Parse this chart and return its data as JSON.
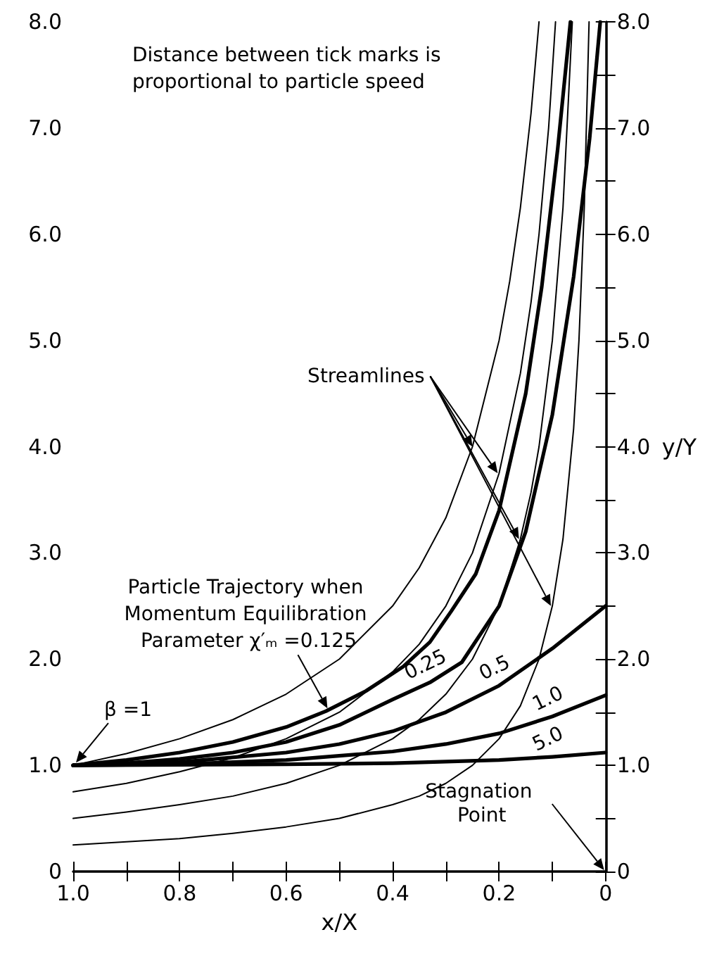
{
  "chart_data": {
    "type": "line",
    "xlabel": "x/X",
    "y2label": "y/Y",
    "xlim": [
      1.0,
      0
    ],
    "xticks": [
      {
        "value": 1,
        "label": "1.0"
      },
      {
        "value": 0.9,
        "label": null
      },
      {
        "value": 0.8,
        "label": "0.8"
      },
      {
        "value": 0.7,
        "label": null
      },
      {
        "value": 0.6,
        "label": "0.6"
      },
      {
        "value": 0.5,
        "label": null
      },
      {
        "value": 0.4,
        "label": "0.4"
      },
      {
        "value": 0.3,
        "label": null
      },
      {
        "value": 0.2,
        "label": "0.2"
      },
      {
        "value": 0.1,
        "label": null
      },
      {
        "value": 0,
        "label": "0"
      }
    ],
    "ylim": [
      0,
      8.0
    ],
    "yticks": [
      0,
      {
        "value": 0.5,
        "label": null
      },
      {
        "value": 1,
        "label": "1.0"
      },
      {
        "value": 1.5,
        "label": null
      },
      {
        "value": 2,
        "label": "2.0"
      },
      {
        "value": 2.5,
        "label": null
      },
      {
        "value": 3,
        "label": "3.0"
      },
      {
        "value": 3.5,
        "label": null
      },
      {
        "value": 4,
        "label": "4.0"
      },
      {
        "value": 4.5,
        "label": null
      },
      {
        "value": 5,
        "label": "5.0"
      },
      {
        "value": 5.5,
        "label": null
      },
      {
        "value": 6,
        "label": "6.0"
      },
      {
        "value": 6.5,
        "label": null
      },
      {
        "value": 7,
        "label": "7.0"
      },
      {
        "value": 7.5,
        "label": null
      },
      {
        "value": 8,
        "label": "8.0"
      }
    ],
    "y2lim": [
      0,
      8.0
    ],
    "y2ticks": [
      0,
      {
        "value": 0.5,
        "label": null
      },
      {
        "value": 1,
        "label": "1.0"
      },
      {
        "value": 1.5,
        "label": null
      },
      {
        "value": 2,
        "label": "2.0"
      },
      {
        "value": 2.5,
        "label": null
      },
      {
        "value": 3,
        "label": "3.0"
      },
      {
        "value": 3.5,
        "label": null
      },
      {
        "value": 4,
        "label": "4.0"
      },
      {
        "value": 4.5,
        "label": null
      },
      {
        "value": 5,
        "label": "5.0"
      },
      {
        "value": 5.5,
        "label": null
      },
      {
        "value": 6,
        "label": "6.0"
      },
      {
        "value": 6.5,
        "label": null
      },
      {
        "value": 7,
        "label": "7.0"
      },
      {
        "value": 7.5,
        "label": null
      },
      {
        "value": 8,
        "label": "8.0"
      }
    ],
    "grid": false,
    "marker": "none",
    "line_style": "solid",
    "series": [
      {
        "color": "#000000",
        "x": [
          1,
          0.9,
          0.8,
          0.7,
          0.6,
          0.5,
          0.4,
          0.35,
          0.3,
          0.25,
          0.2,
          0.18,
          0.16,
          0.14,
          0.125
        ],
        "values": [
          1,
          1.11,
          1.25,
          1.43,
          1.67,
          2.0,
          2.5,
          2.86,
          3.33,
          4.0,
          5.0,
          5.56,
          6.25,
          7.14,
          8.0
        ]
      },
      {
        "color": "#000000",
        "x": [
          1,
          0.9,
          0.8,
          0.7,
          0.6,
          0.5,
          0.4,
          0.35,
          0.3,
          0.25,
          0.2,
          0.16,
          0.14,
          0.125,
          0.107,
          0.094
        ],
        "values": [
          0.75,
          0.83,
          0.94,
          1.07,
          1.25,
          1.5,
          1.88,
          2.14,
          2.5,
          3.0,
          3.75,
          4.69,
          5.36,
          6.0,
          7.0,
          8.0
        ]
      },
      {
        "color": "#000000",
        "x": [
          1,
          0.9,
          0.8,
          0.7,
          0.6,
          0.5,
          0.4,
          0.35,
          0.3,
          0.25,
          0.2,
          0.16,
          0.14,
          0.125,
          0.1,
          0.08,
          0.0625
        ],
        "values": [
          0.5,
          0.56,
          0.63,
          0.71,
          0.83,
          1.0,
          1.25,
          1.43,
          1.67,
          2.0,
          2.5,
          3.13,
          3.57,
          4.0,
          5.0,
          6.25,
          8.0
        ]
      },
      {
        "color": "#000000",
        "x": [
          1,
          0.9,
          0.8,
          0.7,
          0.6,
          0.5,
          0.4,
          0.35,
          0.3,
          0.25,
          0.2,
          0.16,
          0.125,
          0.1,
          0.08,
          0.06,
          0.05,
          0.04,
          0.031
        ],
        "values": [
          0.25,
          0.28,
          0.31,
          0.36,
          0.42,
          0.5,
          0.63,
          0.71,
          0.83,
          1.0,
          1.25,
          1.56,
          2.0,
          2.5,
          3.13,
          4.17,
          5.0,
          6.25,
          8.0
        ]
      },
      {
        "color": "#000000",
        "x": [
          1,
          0.9,
          0.8,
          0.7,
          0.6,
          0.525,
          0.45,
          0.38,
          0.33,
          0.29,
          0.244,
          0.2,
          0.15,
          0.12,
          0.09,
          0.066
        ],
        "values": [
          1,
          1.05,
          1.12,
          1.22,
          1.36,
          1.51,
          1.7,
          1.93,
          2.16,
          2.45,
          2.8,
          3.4,
          4.5,
          5.5,
          6.8,
          8.0
        ]
      },
      {
        "color": "#000000",
        "x": [
          1,
          0.9,
          0.8,
          0.7,
          0.6,
          0.5,
          0.4,
          0.33,
          0.27,
          0.2,
          0.15,
          0.1,
          0.06,
          0.03,
          0.01
        ],
        "values": [
          1,
          1.02,
          1.06,
          1.12,
          1.22,
          1.38,
          1.62,
          1.78,
          1.97,
          2.5,
          3.2,
          4.3,
          5.6,
          6.9,
          8.0
        ]
      },
      {
        "color": "#000000",
        "x": [
          1,
          0.8,
          0.6,
          0.5,
          0.4,
          0.3,
          0.2,
          0.1,
          0.05,
          0
        ],
        "values": [
          1,
          1.03,
          1.12,
          1.2,
          1.32,
          1.5,
          1.75,
          2.1,
          2.3,
          2.5
        ]
      },
      {
        "color": "#000000",
        "x": [
          1,
          0.8,
          0.6,
          0.4,
          0.3,
          0.2,
          0.1,
          0
        ],
        "values": [
          1,
          1.01,
          1.05,
          1.13,
          1.2,
          1.3,
          1.46,
          1.66
        ]
      },
      {
        "color": "#000000",
        "x": [
          1,
          0.6,
          0.4,
          0.2,
          0.1,
          0
        ],
        "values": [
          1,
          1.01,
          1.02,
          1.05,
          1.08,
          1.12
        ]
      }
    ],
    "annotations": [
      "Distance between tick marks is proportional to particle speed",
      {
        "text": "Streamlines",
        "x": 0.25,
        "y": 4.0
      },
      {
        "text": "Particle Trajectory when Momentum Equilibration Parameter χ′ₘ =0.125",
        "x": 0.525,
        "y": 1.51
      },
      {
        "text": "β =1",
        "x": 1,
        "y": 1
      },
      "Stagnation Point",
      {
        "text": "0.25",
        "x": 0.33,
        "y": 1.78
      },
      {
        "text": "0.5",
        "x": 0.2,
        "y": 1.75
      },
      {
        "text": "1.0",
        "x": 0.1,
        "y": 1.46
      },
      {
        "text": "5.0",
        "x": 0.1,
        "y": 1.08
      }
    ]
  }
}
